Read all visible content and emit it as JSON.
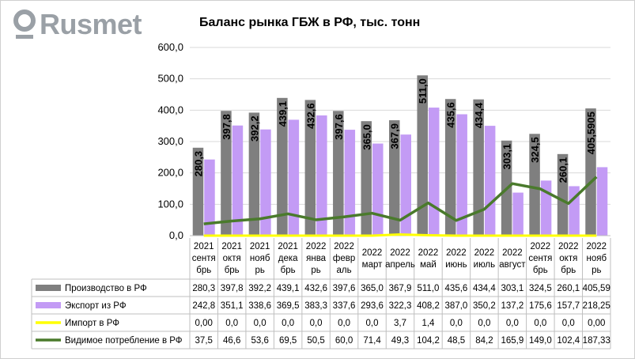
{
  "logo": {
    "text": "Rusmet",
    "icon": "rusmet-logo-icon"
  },
  "colors": {
    "production": "#7f7f7f",
    "export": "#c39bf5",
    "import": "#ffff00",
    "consumption": "#4a7a2c",
    "grid": "#d9d9d9"
  },
  "chart_data": {
    "type": "bar",
    "title": "Баланс рынка ГБЖ в РФ, тыс. тонн",
    "ylim": [
      0,
      600
    ],
    "yticks": [
      "0,0",
      "100,0",
      "200,0",
      "300,0",
      "400,0",
      "500,0",
      "600,0"
    ],
    "grid": true,
    "legend": "bottom-table",
    "categories": [
      [
        "2021",
        "сентя",
        "брь"
      ],
      [
        "2021",
        "октя",
        "брь"
      ],
      [
        "2021",
        "нояб",
        "рь"
      ],
      [
        "2021",
        "дека",
        "брь"
      ],
      [
        "2022",
        "янва",
        "рь"
      ],
      [
        "2022",
        "февр",
        "аль"
      ],
      [
        "2022",
        "март"
      ],
      [
        "2022",
        "апрель"
      ],
      [
        "2022",
        "май"
      ],
      [
        "2022",
        "июнь"
      ],
      [
        "2022",
        "июль"
      ],
      [
        "2022",
        "август"
      ],
      [
        "2022",
        "сентя",
        "брь"
      ],
      [
        "2022",
        "октя",
        "брь"
      ],
      [
        "2022",
        "нояб",
        "рь"
      ]
    ],
    "series": [
      {
        "name": "Производство в РФ",
        "kind": "bar",
        "values": [
          280.3,
          397.8,
          392.2,
          439.1,
          432.6,
          397.6,
          365.0,
          367.9,
          511.0,
          435.6,
          434.4,
          303.1,
          324.5,
          260.1,
          405.59
        ],
        "table": [
          "280,3",
          "397,8",
          "392,2",
          "439,1",
          "432,6",
          "397,6",
          "365,0",
          "367,9",
          "511,0",
          "435,6",
          "434,4",
          "303,1",
          "324,5",
          "260,1",
          "405,59"
        ],
        "labels": [
          "280,3",
          "397,8",
          "392,2",
          "439,1",
          "432,6",
          "397,6",
          "365,0",
          "367,9",
          "511,0",
          "435,6",
          "434,4",
          "303,1",
          "324,5",
          "260,1",
          "405,5905"
        ]
      },
      {
        "name": "Экспорт из РФ",
        "kind": "bar",
        "values": [
          242.8,
          351.1,
          338.6,
          369.5,
          383.3,
          337.6,
          293.6,
          322.3,
          408.2,
          387.0,
          350.2,
          137.2,
          175.6,
          157.7,
          218.25
        ],
        "table": [
          "242,8",
          "351,1",
          "338,6",
          "369,5",
          "383,3",
          "337,6",
          "293,6",
          "322,3",
          "408,2",
          "387,0",
          "350,2",
          "137,2",
          "175,6",
          "157,7",
          "218,25"
        ]
      },
      {
        "name": "Импорт в РФ",
        "kind": "line",
        "values": [
          0.0,
          0.0,
          0.0,
          0.0,
          0.0,
          0.0,
          0.0,
          3.7,
          1.4,
          0.0,
          0.0,
          0.0,
          0.0,
          0.0,
          0.0
        ],
        "table": [
          "0,00",
          "0,0",
          "0,0",
          "0,0",
          "0,0",
          "0,0",
          "0,0",
          "3,7",
          "1,4",
          "0,0",
          "0,0",
          "0,0",
          "0,0",
          "0,0",
          "0,00"
        ]
      },
      {
        "name": "Видимое потребление в РФ",
        "kind": "line",
        "values": [
          37.5,
          46.6,
          53.6,
          69.5,
          50.5,
          60.0,
          71.4,
          49.3,
          104.2,
          48.5,
          84.2,
          165.9,
          149.0,
          102.4,
          187.33
        ],
        "table": [
          "37,5",
          "46,6",
          "53,6",
          "69,5",
          "50,5",
          "60,0",
          "71,4",
          "49,3",
          "104,2",
          "48,5",
          "84,2",
          "165,9",
          "149,0",
          "102,4",
          "187,33"
        ]
      }
    ]
  }
}
